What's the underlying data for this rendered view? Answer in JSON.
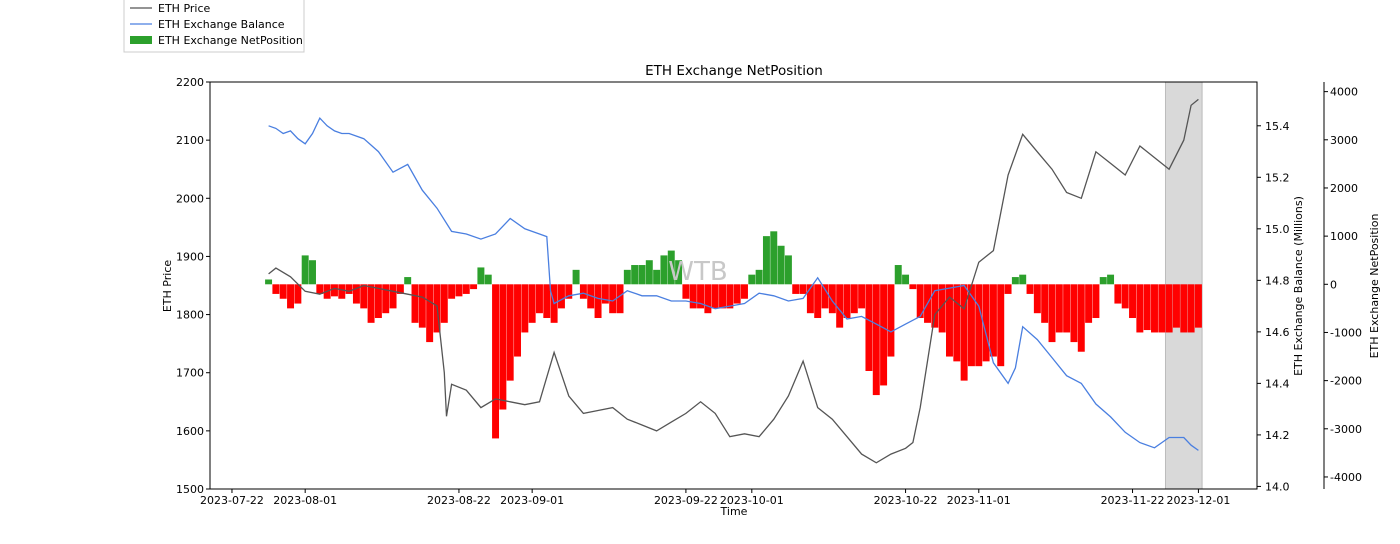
{
  "chart_data": {
    "type": "line+bar (dual/triple axis)",
    "title": "ETH Exchange NetPosition",
    "xlabel": "Time",
    "ylabel_left": "ETH Price",
    "ylabel_right1": "ETH Exchange Balance (Millions)",
    "ylabel_right2": "ETH Exchange NetPosition",
    "watermark": "WTB",
    "x_ticks": [
      "2023-07-22",
      "2023-08-01",
      "2023-08-22",
      "2023-09-01",
      "2023-09-22",
      "2023-10-01",
      "2023-10-22",
      "2023-11-01",
      "2023-11-22",
      "2023-12-01"
    ],
    "x_tick_days": [
      0,
      10,
      31,
      41,
      62,
      71,
      92,
      102,
      123,
      132
    ],
    "xlim_days": [
      -3,
      140
    ],
    "left_axis": {
      "ylim": [
        1500,
        2200
      ],
      "ticks": [
        1500,
        1600,
        1700,
        1800,
        1900,
        2000,
        2100,
        2200
      ]
    },
    "right1_axis": {
      "ylim": [
        13.99,
        15.57
      ],
      "ticks": [
        14.0,
        14.2,
        14.4,
        14.6,
        14.8,
        15.0,
        15.2,
        15.4
      ]
    },
    "right2_axis": {
      "ylim": [
        -4250,
        4200
      ],
      "ticks": [
        4000,
        3000,
        2000,
        1000,
        0,
        -1000,
        -2000,
        -3000,
        -4000
      ]
    },
    "highlight_span_days": [
      127.5,
      132.5
    ],
    "series": [
      {
        "name": "ETH Price",
        "axis": "left",
        "color": "#555555",
        "x_days": [
          5,
          6,
          8,
          10,
          12,
          14,
          16,
          18,
          20,
          22,
          24,
          26,
          28,
          29,
          29.3,
          30,
          32,
          34,
          36,
          38,
          40,
          42,
          44,
          46,
          48,
          50,
          52,
          54,
          56,
          58,
          60,
          62,
          64,
          66,
          68,
          70,
          72,
          74,
          76,
          78,
          80,
          82,
          84,
          86,
          88,
          90,
          92,
          93,
          94,
          95,
          96,
          98,
          100,
          102,
          104,
          106,
          108,
          110,
          112,
          114,
          116,
          118,
          120,
          122,
          124,
          126,
          128,
          130,
          131,
          132
        ],
        "values": [
          1870,
          1880,
          1865,
          1840,
          1835,
          1845,
          1840,
          1850,
          1845,
          1840,
          1835,
          1830,
          1815,
          1700,
          1625,
          1680,
          1670,
          1640,
          1655,
          1650,
          1645,
          1650,
          1735,
          1660,
          1630,
          1635,
          1640,
          1620,
          1610,
          1600,
          1615,
          1630,
          1650,
          1630,
          1590,
          1595,
          1590,
          1620,
          1660,
          1720,
          1640,
          1620,
          1590,
          1560,
          1545,
          1560,
          1570,
          1580,
          1640,
          1720,
          1800,
          1830,
          1810,
          1890,
          1910,
          2040,
          2110,
          2080,
          2050,
          2010,
          2000,
          2080,
          2060,
          2040,
          2090,
          2070,
          2050,
          2100,
          2160,
          2170
        ]
      },
      {
        "name": "ETH Exchange Balance",
        "axis": "right1",
        "color": "#4a7fe0",
        "x_days": [
          5,
          6,
          7,
          8,
          9,
          10,
          11,
          12,
          13,
          14,
          15,
          16,
          18,
          20,
          22,
          24,
          26,
          28,
          30,
          32,
          34,
          36,
          38,
          40,
          42,
          43,
          43.5,
          44,
          46,
          48,
          50,
          52,
          54,
          56,
          58,
          60,
          62,
          64,
          66,
          68,
          70,
          72,
          74,
          76,
          78,
          80,
          82,
          84,
          86,
          88,
          90,
          92,
          94,
          96,
          98,
          100,
          102,
          104,
          106,
          107,
          108,
          110,
          112,
          114,
          116,
          118,
          120,
          122,
          124,
          126,
          128,
          130,
          131,
          132
        ],
        "values": [
          15.4,
          15.39,
          15.37,
          15.38,
          15.35,
          15.33,
          15.37,
          15.43,
          15.4,
          15.38,
          15.37,
          15.37,
          15.35,
          15.3,
          15.22,
          15.25,
          15.15,
          15.08,
          14.99,
          14.98,
          14.96,
          14.98,
          15.04,
          15.0,
          14.98,
          14.97,
          14.76,
          14.71,
          14.74,
          14.75,
          14.73,
          14.72,
          14.76,
          14.74,
          14.74,
          14.72,
          14.72,
          14.71,
          14.69,
          14.7,
          14.71,
          14.75,
          14.74,
          14.72,
          14.73,
          14.81,
          14.72,
          14.65,
          14.66,
          14.63,
          14.6,
          14.63,
          14.66,
          14.76,
          14.77,
          14.78,
          14.7,
          14.48,
          14.4,
          14.46,
          14.62,
          14.57,
          14.5,
          14.43,
          14.4,
          14.32,
          14.27,
          14.21,
          14.17,
          14.15,
          14.19,
          14.19,
          14.16,
          14.14
        ]
      },
      {
        "name": "ETH Exchange NetPosition",
        "axis": "right2",
        "type": "bar",
        "positive_color": "#2ca02c",
        "negative_color": "#ff0000",
        "x_days": [
          5,
          6,
          7,
          8,
          9,
          10,
          11,
          12,
          13,
          14,
          15,
          16,
          17,
          18,
          19,
          20,
          21,
          22,
          23,
          24,
          25,
          26,
          27,
          28,
          29,
          30,
          31,
          32,
          33,
          34,
          35,
          36,
          37,
          38,
          39,
          40,
          41,
          42,
          43,
          44,
          45,
          46,
          47,
          48,
          49,
          50,
          51,
          52,
          53,
          54,
          55,
          56,
          57,
          58,
          59,
          60,
          61,
          62,
          63,
          64,
          65,
          66,
          67,
          68,
          69,
          70,
          71,
          72,
          73,
          74,
          75,
          76,
          77,
          78,
          79,
          80,
          81,
          82,
          83,
          84,
          85,
          86,
          87,
          88,
          89,
          90,
          91,
          92,
          93,
          94,
          95,
          96,
          97,
          98,
          99,
          100,
          101,
          102,
          103,
          104,
          105,
          106,
          107,
          108,
          109,
          110,
          111,
          112,
          113,
          114,
          115,
          116,
          117,
          118,
          119,
          120,
          121,
          122,
          123,
          124,
          125,
          126,
          127,
          128,
          129,
          130,
          131,
          132
        ],
        "values": [
          100,
          -200,
          -300,
          -500,
          -400,
          600,
          500,
          -200,
          -300,
          -250,
          -300,
          -200,
          -400,
          -500,
          -800,
          -700,
          -600,
          -500,
          -200,
          150,
          -800,
          -900,
          -1200,
          -1000,
          -800,
          -300,
          -250,
          -200,
          -100,
          350,
          200,
          -3200,
          -2600,
          -2000,
          -1500,
          -1000,
          -800,
          -600,
          -700,
          -800,
          -500,
          -300,
          300,
          -300,
          -500,
          -700,
          -400,
          -600,
          -600,
          300,
          400,
          400,
          500,
          300,
          600,
          700,
          500,
          -300,
          -500,
          -500,
          -600,
          -500,
          -500,
          -500,
          -400,
          -300,
          200,
          300,
          1000,
          1100,
          800,
          600,
          -200,
          -200,
          -600,
          -700,
          -500,
          -600,
          -900,
          -700,
          -600,
          -500,
          -1800,
          -2300,
          -2100,
          -1500,
          400,
          200,
          -100,
          -700,
          -800,
          -900,
          -1000,
          -1500,
          -1600,
          -2000,
          -1700,
          -1700,
          -1600,
          -1500,
          -1700,
          -200,
          150,
          200,
          -200,
          -600,
          -800,
          -1200,
          -1000,
          -1000,
          -1200,
          -1400,
          -800,
          -700,
          150,
          200,
          -400,
          -500,
          -700,
          -1000,
          -950,
          -1000,
          -1000,
          -1000,
          -900,
          -1000,
          -1000,
          -900
        ]
      }
    ],
    "legend": [
      {
        "label": "ETH Price",
        "kind": "line",
        "color": "#555555"
      },
      {
        "label": "ETH Exchange Balance",
        "kind": "line",
        "color": "#4a7fe0"
      },
      {
        "label": "ETH Exchange NetPosition",
        "kind": "patch",
        "color": "#2ca02c"
      }
    ],
    "legend_position": "top-left (outside plot)"
  }
}
